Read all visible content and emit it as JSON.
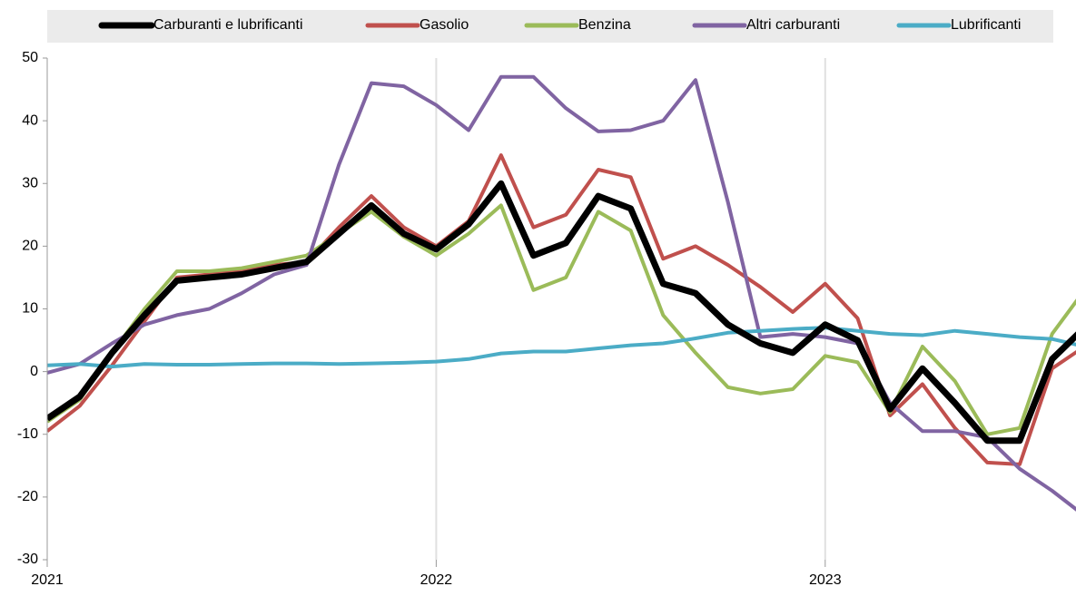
{
  "chart_data": {
    "type": "line",
    "categories": [
      "2021",
      null,
      null,
      null,
      null,
      null,
      null,
      null,
      null,
      null,
      null,
      null,
      "2022",
      null,
      null,
      null,
      null,
      null,
      null,
      null,
      null,
      null,
      null,
      null,
      "2023",
      null,
      null,
      null,
      null,
      null,
      null,
      null,
      null
    ],
    "series": [
      {
        "name": "Carburanti e lubrificanti",
        "color": "#000000",
        "values": [
          -7.5,
          -4,
          3,
          9,
          14.5,
          15,
          15.5,
          16.5,
          17.5,
          22,
          26.5,
          22,
          19.5,
          23.5,
          30,
          18.5,
          20.5,
          28,
          26,
          14,
          12.5,
          7.5,
          4.5,
          3,
          7.5,
          5,
          -6,
          0.5,
          -5,
          -11,
          -11,
          2,
          7
        ]
      },
      {
        "name": "Gasolio",
        "color": "#c0504d",
        "values": [
          -9.5,
          -5.5,
          1,
          8,
          15,
          15.5,
          16,
          17,
          17.5,
          23,
          28,
          23,
          20,
          24,
          34.5,
          23,
          25,
          32.2,
          31,
          18,
          20,
          17,
          13.5,
          9.5,
          14,
          8.5,
          -7,
          -2,
          -9,
          -14.5,
          -14.8,
          0.5,
          4
        ]
      },
      {
        "name": "Benzina",
        "color": "#9bbb59",
        "values": [
          -8,
          -4.5,
          3,
          10,
          16,
          16,
          16.5,
          17.5,
          18.5,
          22,
          25.5,
          21.5,
          18.5,
          22,
          26.5,
          13,
          15,
          25.5,
          22.5,
          9,
          3,
          -2.5,
          -3.5,
          -2.8,
          2.5,
          1.5,
          -6.5,
          4,
          -1.5,
          -10,
          -9,
          6,
          13
        ]
      },
      {
        "name": "Altri carburanti",
        "color": "#8064a2",
        "values": [
          -0.2,
          1.2,
          4.5,
          7.5,
          9,
          10,
          12.5,
          15.5,
          17,
          33,
          46,
          45.5,
          42.5,
          38.5,
          47,
          47,
          42,
          38.3,
          38.5,
          40,
          46.5,
          27,
          5.5,
          6,
          5.5,
          4.5,
          -5,
          -9.5,
          -9.5,
          -10.5,
          -15.5,
          -19,
          -23
        ]
      },
      {
        "name": "Lubrificanti",
        "color": "#4bacc6",
        "values": [
          1,
          1.2,
          0.8,
          1.2,
          1.1,
          1.1,
          1.2,
          1.3,
          1.3,
          1.2,
          1.3,
          1.4,
          1.6,
          2,
          2.9,
          3.2,
          3.2,
          3.7,
          4.2,
          4.5,
          5.3,
          6.2,
          6.5,
          6.8,
          7,
          6.5,
          6,
          5.8,
          6.5,
          6,
          5.5,
          5.2,
          4
        ]
      }
    ],
    "ylim": [
      -30,
      50
    ],
    "yticks": [
      -30,
      -20,
      -10,
      0,
      10,
      20,
      30,
      40,
      50
    ],
    "legend_position": "top"
  }
}
